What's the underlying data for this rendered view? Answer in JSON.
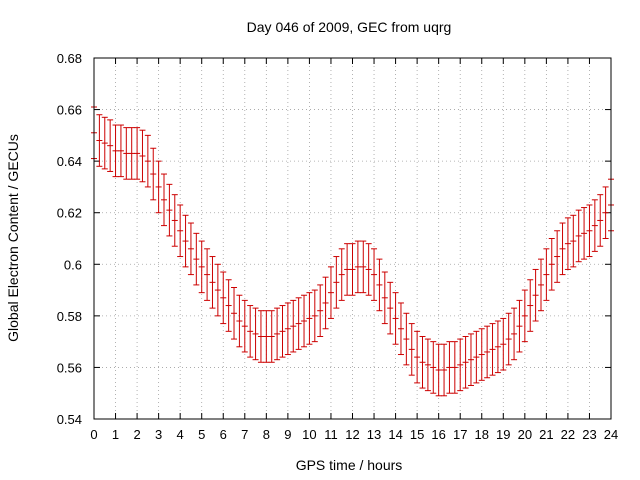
{
  "chart_data": {
    "type": "scatter",
    "title": "Day 046 of 2009, GEC from uqrg",
    "xlabel": "GPS time / hours",
    "ylabel": "Global Electron Content / GECUs",
    "xlim": [
      0,
      24
    ],
    "ylim": [
      0.54,
      0.68
    ],
    "xticks": [
      "0",
      "1",
      "2",
      "3",
      "4",
      "5",
      "6",
      "7",
      "8",
      "9",
      "10",
      "11",
      "12",
      "13",
      "14",
      "15",
      "16",
      "17",
      "18",
      "19",
      "20",
      "21",
      "22",
      "23",
      "24"
    ],
    "yticks": [
      "0.54",
      "0.56",
      "0.58",
      "0.6",
      "0.62",
      "0.64",
      "0.66",
      "0.68"
    ],
    "grid": true,
    "error_half_width": 0.01,
    "series": [
      {
        "name": "GEC",
        "color": "#cc0000",
        "x": [
          0,
          0.25,
          0.5,
          0.75,
          1,
          1.25,
          1.5,
          1.75,
          2,
          2.25,
          2.5,
          2.75,
          3,
          3.25,
          3.5,
          3.75,
          4,
          4.25,
          4.5,
          4.75,
          5,
          5.25,
          5.5,
          5.75,
          6,
          6.25,
          6.5,
          6.75,
          7,
          7.25,
          7.5,
          7.75,
          8,
          8.25,
          8.5,
          8.75,
          9,
          9.25,
          9.5,
          9.75,
          10,
          10.25,
          10.5,
          10.75,
          11,
          11.25,
          11.5,
          11.75,
          12,
          12.25,
          12.5,
          12.75,
          13,
          13.25,
          13.5,
          13.75,
          14,
          14.25,
          14.5,
          14.75,
          15,
          15.25,
          15.5,
          15.75,
          16,
          16.25,
          16.5,
          16.75,
          17,
          17.25,
          17.5,
          17.75,
          18,
          18.25,
          18.5,
          18.75,
          19,
          19.25,
          19.5,
          19.75,
          20,
          20.25,
          20.5,
          20.75,
          21,
          21.25,
          21.5,
          21.75,
          22,
          22.25,
          22.5,
          22.75,
          23,
          23.25,
          23.5,
          23.75,
          24
        ],
        "y": [
          0.651,
          0.648,
          0.647,
          0.646,
          0.644,
          0.644,
          0.643,
          0.643,
          0.643,
          0.642,
          0.64,
          0.635,
          0.63,
          0.625,
          0.621,
          0.617,
          0.613,
          0.609,
          0.606,
          0.602,
          0.599,
          0.596,
          0.593,
          0.59,
          0.587,
          0.584,
          0.581,
          0.578,
          0.576,
          0.574,
          0.573,
          0.572,
          0.572,
          0.572,
          0.573,
          0.574,
          0.575,
          0.576,
          0.577,
          0.578,
          0.579,
          0.58,
          0.582,
          0.585,
          0.589,
          0.593,
          0.596,
          0.598,
          0.598,
          0.599,
          0.599,
          0.598,
          0.596,
          0.592,
          0.587,
          0.583,
          0.579,
          0.575,
          0.571,
          0.567,
          0.564,
          0.562,
          0.561,
          0.56,
          0.559,
          0.559,
          0.56,
          0.56,
          0.561,
          0.562,
          0.563,
          0.564,
          0.565,
          0.566,
          0.567,
          0.568,
          0.569,
          0.571,
          0.573,
          0.576,
          0.58,
          0.584,
          0.588,
          0.592,
          0.596,
          0.6,
          0.603,
          0.606,
          0.608,
          0.609,
          0.611,
          0.612,
          0.613,
          0.615,
          0.617,
          0.62,
          0.623
        ]
      }
    ]
  }
}
